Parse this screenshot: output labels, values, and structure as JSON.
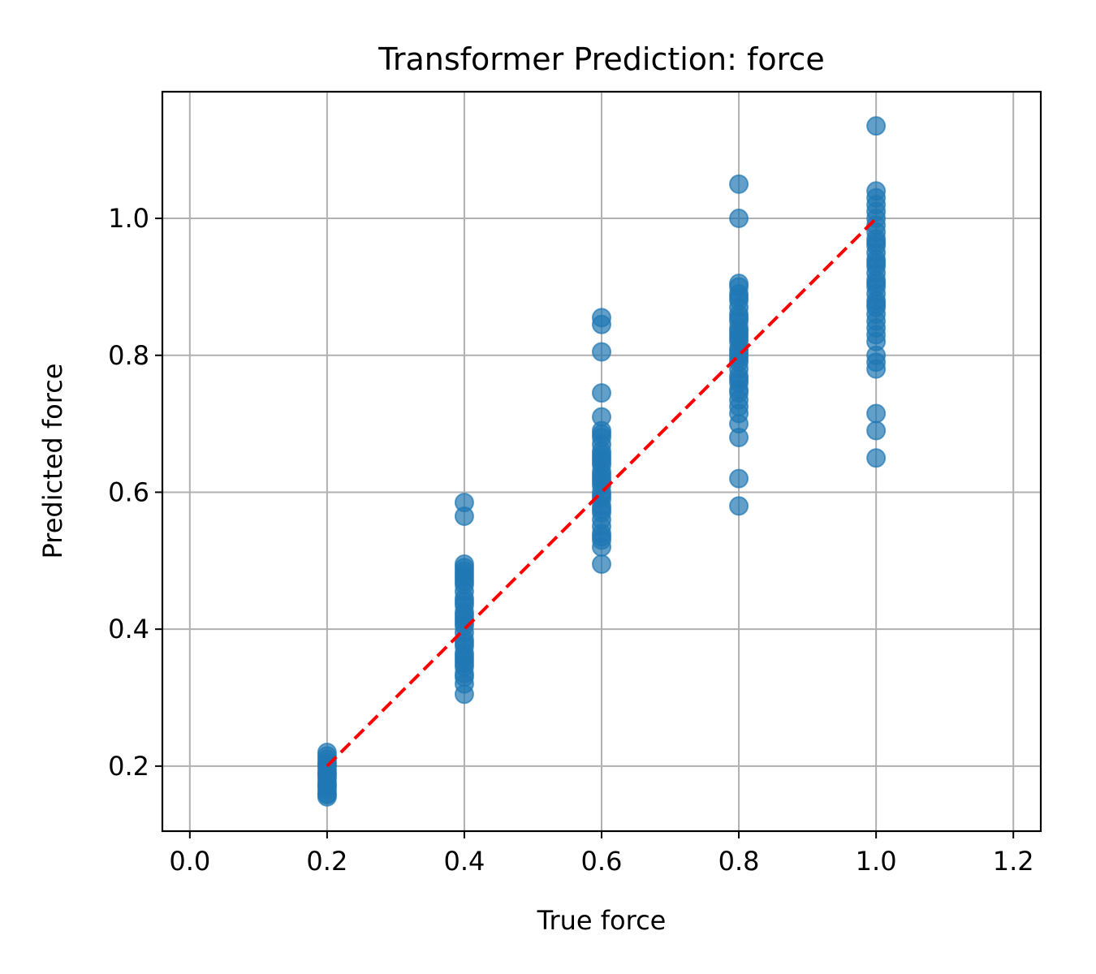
{
  "chart_data": {
    "type": "scatter",
    "title": "Transformer Prediction: force",
    "xlabel": "True force",
    "ylabel": "Predicted force",
    "xlim": [
      -0.04,
      1.24
    ],
    "ylim": [
      0.105,
      1.185
    ],
    "xticks": [
      "0.0",
      "0.2",
      "0.4",
      "0.6",
      "0.8",
      "1.0",
      "1.2"
    ],
    "yticks": [
      "0.2",
      "0.4",
      "0.6",
      "0.8",
      "1.0"
    ],
    "grid": true,
    "point_color": "#1f77b4",
    "point_alpha": 0.7,
    "reference_line": {
      "x": [
        0.2,
        1.0
      ],
      "y": [
        0.2,
        1.0
      ],
      "color": "#ff0000",
      "style": "dashed"
    },
    "series": [
      {
        "x": [
          0.2,
          0.2,
          0.2,
          0.2,
          0.2,
          0.2,
          0.2,
          0.2,
          0.2,
          0.2,
          0.2,
          0.2,
          0.2,
          0.2,
          0.2,
          0.2,
          0.2,
          0.2,
          0.4,
          0.4,
          0.4,
          0.4,
          0.4,
          0.4,
          0.4,
          0.4,
          0.4,
          0.4,
          0.4,
          0.4,
          0.4,
          0.4,
          0.4,
          0.4,
          0.4,
          0.4,
          0.4,
          0.4,
          0.4,
          0.4,
          0.4,
          0.4,
          0.4,
          0.4,
          0.4,
          0.4,
          0.4,
          0.4,
          0.4,
          0.6,
          0.6,
          0.6,
          0.6,
          0.6,
          0.6,
          0.6,
          0.6,
          0.6,
          0.6,
          0.6,
          0.6,
          0.6,
          0.6,
          0.6,
          0.6,
          0.6,
          0.6,
          0.6,
          0.6,
          0.6,
          0.6,
          0.6,
          0.6,
          0.6,
          0.6,
          0.6,
          0.6,
          0.6,
          0.6,
          0.6,
          0.6,
          0.8,
          0.8,
          0.8,
          0.8,
          0.8,
          0.8,
          0.8,
          0.8,
          0.8,
          0.8,
          0.8,
          0.8,
          0.8,
          0.8,
          0.8,
          0.8,
          0.8,
          0.8,
          0.8,
          0.8,
          0.8,
          0.8,
          0.8,
          0.8,
          0.8,
          0.8,
          0.8,
          0.8,
          0.8,
          0.8,
          0.8,
          0.8,
          0.8,
          0.8,
          1.0,
          1.0,
          1.0,
          1.0,
          1.0,
          1.0,
          1.0,
          1.0,
          1.0,
          1.0,
          1.0,
          1.0,
          1.0,
          1.0,
          1.0,
          1.0,
          1.0,
          1.0,
          1.0,
          1.0,
          1.0,
          1.0,
          1.0,
          1.0,
          1.0,
          1.0,
          1.0,
          1.0,
          1.0,
          1.0,
          1.0,
          1.0,
          1.0,
          1.0
        ],
        "y": [
          0.155,
          0.16,
          0.165,
          0.17,
          0.175,
          0.18,
          0.185,
          0.19,
          0.195,
          0.2,
          0.205,
          0.21,
          0.215,
          0.22,
          0.158,
          0.172,
          0.188,
          0.202,
          0.305,
          0.32,
          0.335,
          0.345,
          0.355,
          0.365,
          0.375,
          0.385,
          0.395,
          0.405,
          0.415,
          0.425,
          0.435,
          0.445,
          0.455,
          0.465,
          0.47,
          0.475,
          0.48,
          0.485,
          0.49,
          0.495,
          0.44,
          0.41,
          0.38,
          0.35,
          0.33,
          0.36,
          0.565,
          0.585,
          0.42,
          0.495,
          0.52,
          0.53,
          0.54,
          0.55,
          0.56,
          0.57,
          0.58,
          0.59,
          0.6,
          0.61,
          0.62,
          0.63,
          0.64,
          0.65,
          0.66,
          0.67,
          0.68,
          0.69,
          0.71,
          0.745,
          0.805,
          0.845,
          0.855,
          0.535,
          0.575,
          0.615,
          0.655,
          0.685,
          0.625,
          0.595,
          0.645,
          0.58,
          0.62,
          0.68,
          0.7,
          0.715,
          0.725,
          0.735,
          0.75,
          0.76,
          0.77,
          0.78,
          0.79,
          0.8,
          0.81,
          0.82,
          0.83,
          0.84,
          0.85,
          0.86,
          0.87,
          0.88,
          0.89,
          0.9,
          0.905,
          1.0,
          1.05,
          0.765,
          0.795,
          0.825,
          0.855,
          0.885,
          0.745,
          0.805,
          0.835,
          0.65,
          0.69,
          0.715,
          0.78,
          0.79,
          0.8,
          0.82,
          0.83,
          0.84,
          0.85,
          0.86,
          0.87,
          0.88,
          0.89,
          0.9,
          0.91,
          0.92,
          0.93,
          0.94,
          0.95,
          0.96,
          0.97,
          0.98,
          0.99,
          1.0,
          1.01,
          1.02,
          1.03,
          1.04,
          1.135,
          0.875,
          0.905,
          0.935,
          0.965
        ]
      }
    ]
  }
}
